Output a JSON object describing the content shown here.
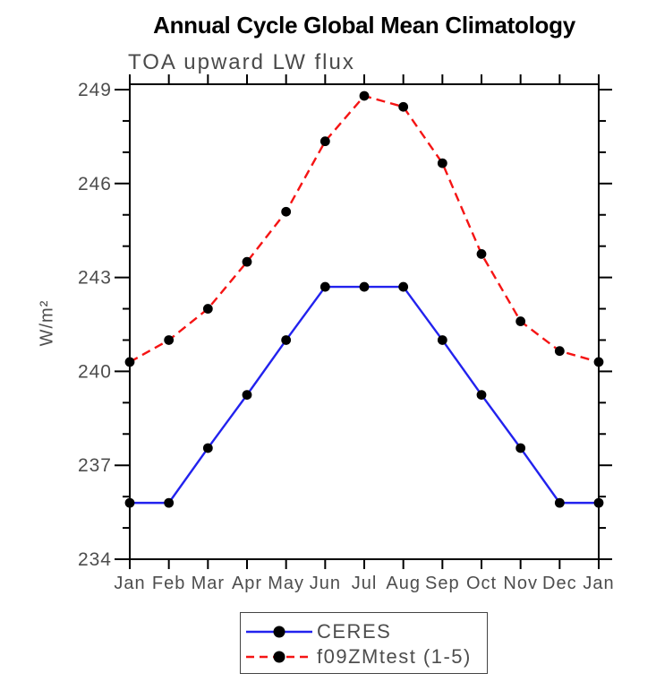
{
  "chart_data": {
    "type": "line",
    "title": "Annual Cycle Global Mean Climatology",
    "subtitle": "TOA upward LW flux",
    "ylabel": "W/m²",
    "xlabel": "",
    "categories": [
      "Jan",
      "Feb",
      "Mar",
      "Apr",
      "May",
      "Jun",
      "Jul",
      "Aug",
      "Sep",
      "Oct",
      "Nov",
      "Dec",
      "Jan"
    ],
    "ylim": [
      234,
      249.2
    ],
    "yticks_major": [
      234,
      237,
      240,
      243,
      246,
      249
    ],
    "yticks_minor": [
      235,
      236,
      238,
      239,
      241,
      242,
      244,
      245,
      247,
      248
    ],
    "grid": false,
    "frame": true,
    "legend_position": "bottom-center",
    "axis_color": "#000000",
    "tick_label_color": "#4d4d4d",
    "marker_color": "#000000",
    "series": [
      {
        "name": "CERES",
        "color": "#2222ee",
        "line_style": "solid",
        "marker": "filled-circle",
        "values": [
          235.8,
          235.8,
          237.55,
          239.25,
          241.0,
          242.7,
          242.7,
          242.7,
          241.0,
          239.25,
          237.55,
          235.8,
          235.8
        ]
      },
      {
        "name": "f09ZMtest (1-5)",
        "color": "#f51414",
        "line_style": "dashed",
        "marker": "filled-circle",
        "values": [
          240.3,
          241.0,
          242.0,
          243.5,
          245.1,
          247.35,
          248.8,
          248.45,
          246.65,
          243.75,
          241.6,
          240.65,
          240.3
        ]
      }
    ]
  }
}
